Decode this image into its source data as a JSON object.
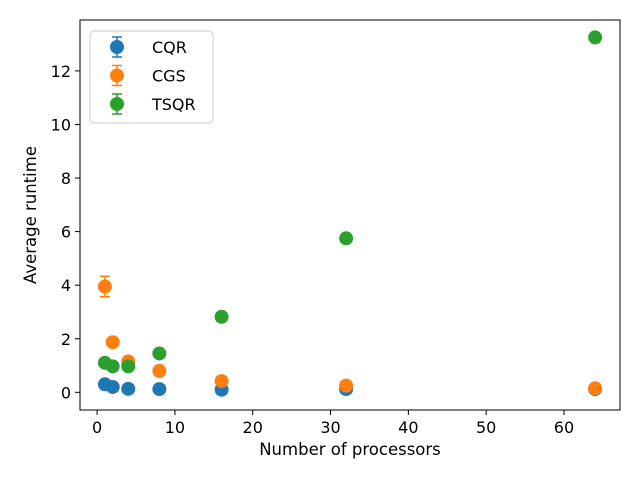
{
  "chart_data": {
    "type": "scatter",
    "title": "",
    "xlabel": "Number of processors",
    "ylabel": "Average runtime",
    "xlim": [
      -2.2,
      67.2
    ],
    "ylim": [
      -0.66,
      13.9
    ],
    "xticks": [
      0,
      10,
      20,
      30,
      40,
      50,
      60
    ],
    "yticks": [
      0,
      2,
      4,
      6,
      8,
      10,
      12
    ],
    "grid": false,
    "legend_position": "upper-left",
    "series": [
      {
        "name": "CQR",
        "color": "#1f77b4",
        "x": [
          1,
          2,
          4,
          8,
          16,
          32,
          64
        ],
        "y": [
          0.3,
          0.2,
          0.13,
          0.12,
          0.1,
          0.12,
          0.12
        ],
        "err": [
          0.02,
          0.02,
          0.01,
          0.01,
          0.01,
          0.01,
          0.01
        ]
      },
      {
        "name": "CGS",
        "color": "#ff7f0e",
        "x": [
          1,
          2,
          4,
          8,
          16,
          32,
          64
        ],
        "y": [
          3.95,
          1.87,
          1.15,
          0.8,
          0.42,
          0.25,
          0.15
        ],
        "err": [
          0.38,
          0.02,
          0.02,
          0.02,
          0.02,
          0.02,
          0.02
        ]
      },
      {
        "name": "TSQR",
        "color": "#2ca02c",
        "x": [
          1,
          2,
          4,
          8,
          16,
          32,
          64
        ],
        "y": [
          1.1,
          0.97,
          0.97,
          1.45,
          2.82,
          5.75,
          13.25
        ],
        "err": [
          0.03,
          0.02,
          0.02,
          0.02,
          0.03,
          0.03,
          0.03
        ]
      }
    ]
  }
}
